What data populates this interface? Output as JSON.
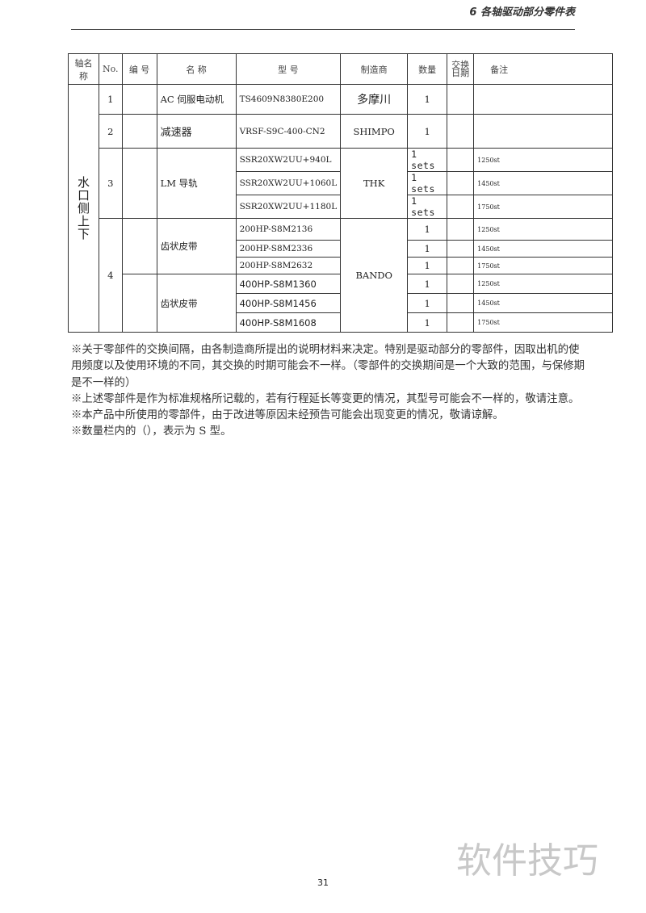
{
  "header": {
    "section_title": "6 各轴驱动部分零件表"
  },
  "table": {
    "columns": [
      "轴名称",
      "No.",
      "编 号",
      "名 称",
      "型 号",
      "制造商",
      "数量",
      "交换日期",
      "备注"
    ],
    "axis_name": "水口侧上下",
    "rows": [
      {
        "no": "1",
        "code": "",
        "name": "AC 伺服电动机",
        "maker": "多摩川",
        "items": [
          {
            "model": "TS4609N8380E200",
            "qty": "1",
            "date": "",
            "remark": ""
          }
        ]
      },
      {
        "no": "2",
        "code": "",
        "name": "减速器",
        "maker": "SHIMPO",
        "items": [
          {
            "model": "VRSF-S9C-400-CN2",
            "qty": "1",
            "date": "",
            "remark": ""
          }
        ]
      },
      {
        "no": "3",
        "code": "",
        "name": "LM 导轨",
        "maker": "THK",
        "items": [
          {
            "model": "SSR20XW2UU+940L",
            "qty": "1 sets",
            "date": "",
            "remark": "1250st"
          },
          {
            "model": "SSR20XW2UU+1060L",
            "qty": "1 sets",
            "date": "",
            "remark": "1450st"
          },
          {
            "model": "SSR20XW2UU+1180L",
            "qty": "1 sets",
            "date": "",
            "remark": "1750st"
          }
        ]
      },
      {
        "no": "4",
        "maker": "BANDO",
        "groups": [
          {
            "code": "",
            "name": "齿状皮带",
            "items": [
              {
                "model": "200HP-S8M2136",
                "qty": "1",
                "date": "",
                "remark": "1250st"
              },
              {
                "model": "200HP-S8M2336",
                "qty": "1",
                "date": "",
                "remark": "1450st"
              },
              {
                "model": "200HP-S8M2632",
                "qty": "1",
                "date": "",
                "remark": "1750st"
              }
            ]
          },
          {
            "code": "",
            "name": "齿状皮带",
            "items": [
              {
                "model": "400HP-S8M1360",
                "qty": "1",
                "date": "",
                "remark": "1250st"
              },
              {
                "model": "400HP-S8M1456",
                "qty": "1",
                "date": "",
                "remark": "1450st"
              },
              {
                "model": "400HP-S8M1608",
                "qty": "1",
                "date": "",
                "remark": "1750st"
              }
            ]
          }
        ]
      }
    ]
  },
  "notes": [
    "※关于零部件的交换间隔，由各制造商所提出的说明材料来决定。特别是驱动部分的零部件，因取出机的使用频度以及使用环境的不同，其交换的时期可能会不一样。（零部件的交换期间是一个大致的范围，与保修期是不一样的）",
    "※上述零部件是作为标准规格所记载的，若有行程延长等变更的情况，其型号可能会不一样的，敬请注意。",
    "※本产品中所使用的零部件，由于改进等原因未经预告可能会出现变更的情况，敬请谅解。",
    "※数量栏内的（），表示为 S 型。"
  ],
  "footer": {
    "page_number": "31"
  },
  "watermark": "软件技巧"
}
